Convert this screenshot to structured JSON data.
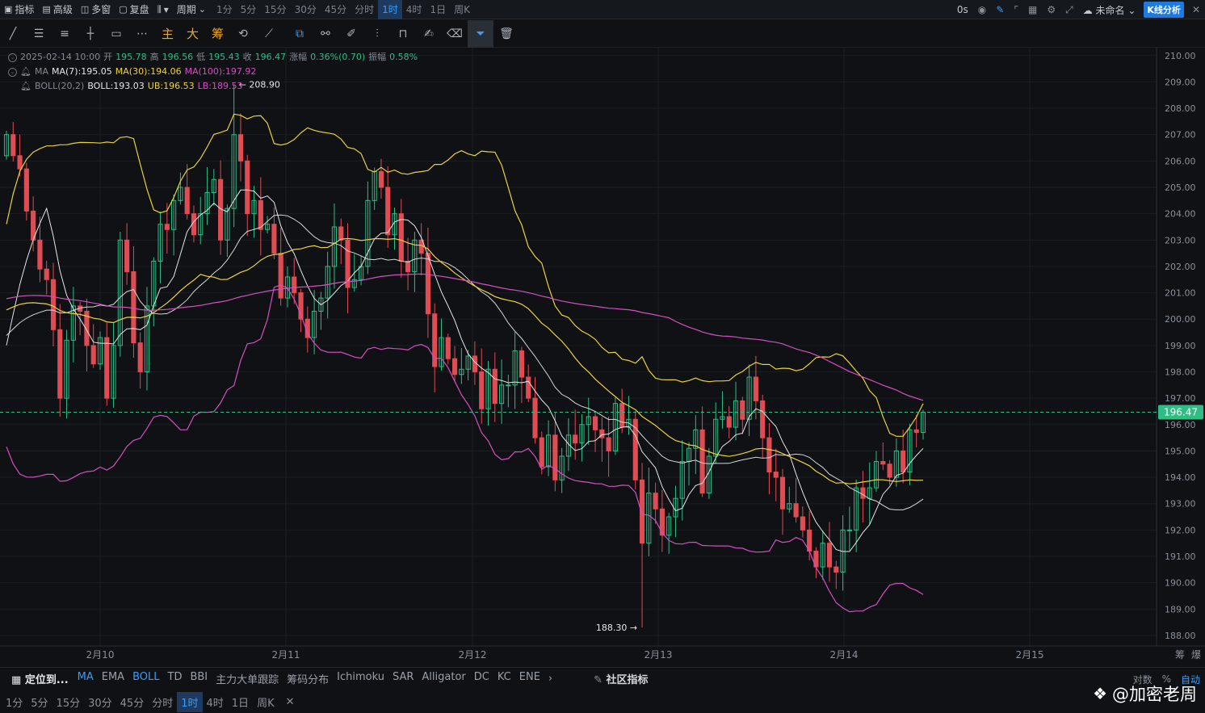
{
  "toolbar": {
    "indicators": "指标",
    "advanced": "高级",
    "multi_window": "多窗",
    "restore_rights": "复盘",
    "chart_type_arrow": "▾",
    "period": "周期",
    "intervals": [
      "1分",
      "5分",
      "15分",
      "30分",
      "45分",
      "分时",
      "1时",
      "4时",
      "1日",
      "周K"
    ],
    "active_interval": "1时",
    "countdown": "0s",
    "layout_name": "未命名",
    "kline_analysis": "K线分析"
  },
  "draw_toolbar": {
    "main_label": "主",
    "big_label": "大",
    "chip_label": "筹"
  },
  "legend": {
    "datetime": "2025-02-14 10:00",
    "open_label": "开",
    "open": "195.78",
    "high_label": "高",
    "high": "196.56",
    "low_label": "低",
    "low": "195.43",
    "close_label": "收",
    "close": "196.47",
    "change_label": "涨幅",
    "change": "0.36%(0.70)",
    "amp_label": "振幅",
    "amplitude": "0.58%",
    "ma_name": "MA",
    "ma7": "MA(7):195.05",
    "ma30": "MA(30):194.06",
    "ma100": "MA(100):197.92",
    "boll_name": "BOLL(20,2)",
    "boll": "BOLL:193.03",
    "ub": "UB:196.53",
    "lb": "LB:189.53"
  },
  "indicator_bar": {
    "locate": "定位到...",
    "items": [
      "MA",
      "EMA",
      "BOLL",
      "TD",
      "BBI",
      "主力大单跟踪",
      "筹码分布",
      "Ichimoku",
      "SAR",
      "Alligator",
      "DC",
      "KC",
      "ENE"
    ],
    "active": [
      "MA",
      "BOLL"
    ],
    "more": "›",
    "community": "社区指标",
    "log_scale": "对数",
    "percent": "%",
    "auto": "自动"
  },
  "bottom_intervals": [
    "1分",
    "5分",
    "15分",
    "30分",
    "45分",
    "分时",
    "1时",
    "4时",
    "1日",
    "周K"
  ],
  "bottom_active": "1时",
  "watermark": "@加密老周",
  "colors": {
    "up": "#2ebd85",
    "down": "#e04c54",
    "ma7": "#e6e6e6",
    "ma30": "#f0d23c",
    "ma100": "#d64fc0",
    "boll_mid": "#d7d7d7",
    "boll_ub": "#e8d23a",
    "boll_lb": "#d64fc0",
    "price_tag": "#2ebd85"
  },
  "chart_data": {
    "type": "candlestick",
    "interval": "1h",
    "y_ticks": [
      "210.00",
      "209.00",
      "208.00",
      "207.00",
      "206.00",
      "205.00",
      "204.00",
      "203.00",
      "202.00",
      "201.00",
      "200.00",
      "199.00",
      "198.00",
      "197.00",
      "196.00",
      "195.00",
      "194.00",
      "193.00",
      "192.00",
      "191.00",
      "190.00",
      "189.00",
      "188.00"
    ],
    "x_ticks": [
      "2月10",
      "2月11",
      "2月12",
      "2月13",
      "2月14",
      "2月15"
    ],
    "axis_corner": [
      "筹",
      "爆"
    ],
    "last_price": "196.47",
    "max_label": "208.90",
    "min_label": "188.30",
    "ylim": [
      187.6,
      210.3
    ],
    "closes": [
      207.0,
      206.2,
      205.7,
      204.1,
      203.0,
      201.9,
      201.5,
      199.6,
      197.0,
      199.2,
      200.5,
      200.3,
      199.0,
      198.3,
      199.3,
      197.0,
      199.0,
      203.0,
      201.8,
      199.1,
      198.0,
      200.5,
      202.2,
      203.6,
      203.4,
      204.5,
      205.0,
      204.0,
      203.2,
      204.0,
      204.8,
      205.3,
      203.0,
      204.2,
      207.0,
      206.0,
      204.0,
      204.5,
      203.4,
      203.6,
      202.5,
      200.8,
      201.6,
      201.0,
      200.0,
      199.3,
      200.3,
      200.8,
      202.0,
      203.5,
      203.0,
      201.2,
      201.5,
      202.0,
      204.5,
      205.6,
      205.0,
      203.2,
      204.0,
      202.2,
      201.8,
      203.0,
      202.5,
      200.2,
      198.2,
      199.3,
      198.5,
      197.9,
      198.1,
      198.6,
      198.0,
      196.6,
      198.1,
      196.8,
      197.5,
      197.5,
      198.8,
      197.8,
      197.0,
      195.5,
      194.4,
      195.6,
      193.9,
      194.8,
      195.6,
      195.3,
      196.0,
      196.3,
      195.8,
      195.5,
      195.0,
      196.8,
      195.9,
      196.2,
      193.9,
      191.5,
      193.4,
      192.8,
      191.8,
      192.5,
      193.2,
      194.6,
      195.1,
      195.8,
      193.4,
      194.8,
      196.2,
      196.3,
      195.9,
      196.9,
      196.2,
      197.8,
      196.9,
      195.5,
      194.2,
      194.0,
      192.8,
      193.0,
      192.5,
      192.0,
      191.2,
      190.6,
      191.5,
      190.6,
      190.4,
      192.0,
      192.0,
      193.6,
      193.2,
      193.6,
      194.6,
      194.5,
      194.0,
      195.0,
      194.2,
      195.8,
      195.7,
      196.47
    ],
    "ma7_visible": true,
    "ma30_visible": true,
    "ma100_visible": true,
    "boll_visible": true
  }
}
